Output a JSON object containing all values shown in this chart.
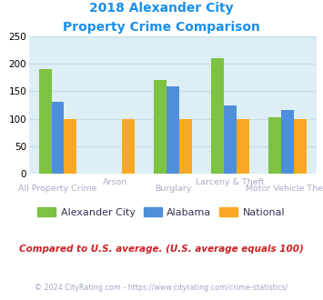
{
  "title_line1": "2018 Alexander City",
  "title_line2": "Property Crime Comparison",
  "categories": [
    "All Property Crime",
    "Arson",
    "Burglary",
    "Larceny & Theft",
    "Motor Vehicle Theft"
  ],
  "alexander_city": [
    190,
    0,
    170,
    210,
    103
  ],
  "alabama": [
    130,
    0,
    158,
    124,
    116
  ],
  "national": [
    100,
    100,
    100,
    100,
    100
  ],
  "colors": {
    "alexander_city": "#7dc242",
    "alabama": "#4e8fda",
    "national": "#f9a825"
  },
  "ylim": [
    0,
    250
  ],
  "yticks": [
    0,
    50,
    100,
    150,
    200,
    250
  ],
  "bar_width": 0.22,
  "title_color": "#1a8fea",
  "bg_color": "#ddeef5",
  "grid_color": "#c5dce5",
  "xlabel_color_lower": "#b0a8c8",
  "xlabel_color_upper": "#b0a8c8",
  "legend_labels": [
    "Alexander City",
    "Alabama",
    "National"
  ],
  "footnote1": "Compared to U.S. average. (U.S. average equals 100)",
  "footnote2": "© 2024 CityRating.com - https://www.cityrating.com/crime-statistics/",
  "footnote1_color": "#cc2222",
  "footnote2_color": "#a0a8c8"
}
